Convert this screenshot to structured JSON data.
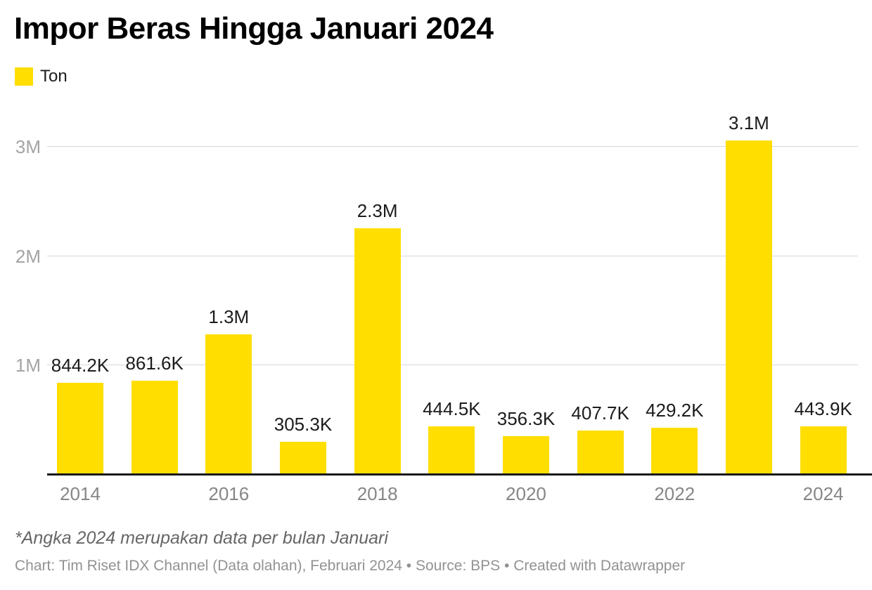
{
  "title": "Impor Beras Hingga Januari 2024",
  "legend": {
    "label": "Ton",
    "swatch_color": "#ffde00"
  },
  "chart_data": {
    "type": "bar",
    "title": "Impor Beras Hingga Januari 2024",
    "unit": "Ton",
    "categories": [
      "2014",
      "2015",
      "2016",
      "2017",
      "2018",
      "2019",
      "2020",
      "2021",
      "2022",
      "2023",
      "2024"
    ],
    "values": [
      844200,
      861600,
      1283000,
      305300,
      2253000,
      444500,
      356300,
      407700,
      429200,
      3062000,
      443900
    ],
    "bar_labels": [
      "844.2K",
      "861.6K",
      "1.3M",
      "305.3K",
      "2.3M",
      "444.5K",
      "356.3K",
      "407.7K",
      "429.2K",
      "3.1M",
      "443.9K"
    ],
    "x_tick_labels": [
      "2014",
      "2016",
      "2018",
      "2020",
      "2022",
      "2024"
    ],
    "y_ticks": [
      {
        "label": "1M",
        "value": 1000000
      },
      {
        "label": "2M",
        "value": 2000000
      },
      {
        "label": "3M",
        "value": 3000000
      }
    ],
    "ylim": [
      0,
      3316000
    ],
    "grid": "horizontal",
    "legend_position": "top-left",
    "bar_color": "#ffde00"
  },
  "footnote": "*Angka 2024 merupakan data per bulan Januari",
  "byline": "Chart: Tim Riset IDX Channel (Data olahan), Februari 2024 • Source: BPS • Created with Datawrapper"
}
